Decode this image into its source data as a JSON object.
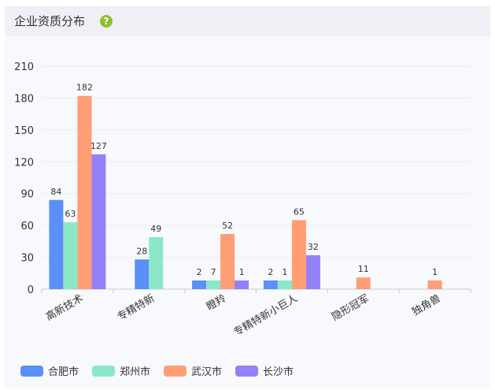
{
  "header": {
    "title": "企业资质分布",
    "help_icon": "question-circle-icon",
    "help_symbol": "?"
  },
  "colors": {
    "help": "#8dbf2e",
    "grid": "#e9ecf2",
    "axis": "#c8ccd4"
  },
  "chart_data": {
    "type": "bar",
    "categories": [
      "高新技术",
      "专精特新",
      "瞪羚",
      "专精特新小巨人",
      "隐形冠军",
      "独角兽"
    ],
    "series": [
      {
        "name": "合肥市",
        "color": "#5b8ff9",
        "values": [
          84,
          28,
          2,
          2,
          null,
          null
        ]
      },
      {
        "name": "郑州市",
        "color": "#8ae8c8",
        "values": [
          63,
          49,
          7,
          1,
          null,
          null
        ]
      },
      {
        "name": "武汉市",
        "color": "#ff9d75",
        "values": [
          182,
          null,
          52,
          65,
          11,
          1
        ]
      },
      {
        "name": "长沙市",
        "color": "#9480f8",
        "values": [
          127,
          null,
          1,
          32,
          null,
          null
        ]
      }
    ],
    "yticks": [
      0,
      30,
      60,
      90,
      120,
      150,
      180,
      210
    ],
    "ylim": [
      0,
      210
    ],
    "grid": true,
    "legend_position": "bottom-left"
  }
}
